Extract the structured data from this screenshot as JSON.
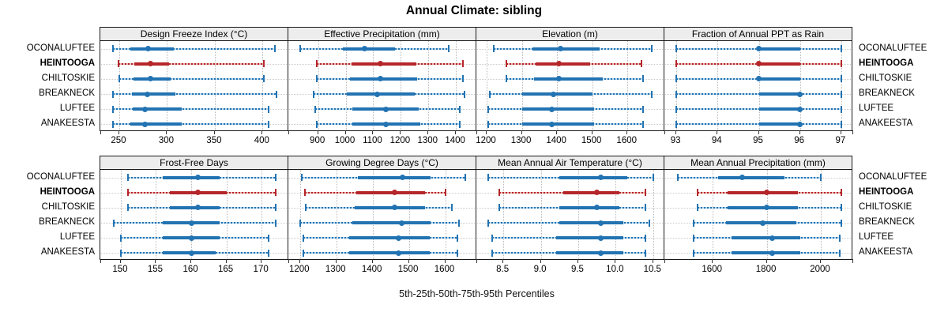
{
  "title": "Annual Climate: sibling",
  "caption": "5th-25th-50th-75th-95th Percentiles",
  "colors": {
    "blue": "#2273b2",
    "blue_stripe": "#b9d7ec",
    "red": "#b5262a",
    "red_stripe": "#eab4af",
    "strip_bg": "#ededed",
    "panel_border": "#1a1a1a",
    "gridline": "#b8b8b8",
    "row_guide": "#cbcbcb"
  },
  "chart_data": {
    "type": "percentile-dotplot",
    "title": "Annual Climate: sibling",
    "caption": "5th-25th-50th-75th-95th Percentiles",
    "sites": [
      "OCONALUFTEE",
      "HEINTOOGA",
      "CHILTOSKIE",
      "BREAKNECK",
      "LUFTEE",
      "ANAKEESTA"
    ],
    "highlighted_site": "HEINTOOGA",
    "percentile_order": [
      "p5",
      "p25",
      "p50",
      "p75",
      "p95"
    ],
    "legend": "grid of 2 rows x 4 panels; each row of marks = 5th/25th/50th/75th/95th percentiles; thin line p5-p95, thick bar p25-p75, dot p50",
    "panels": [
      {
        "name": "Design Freeze Index (°C)",
        "grid_row": 1,
        "xlim": [
          231,
          427
        ],
        "tick_values": [
          250,
          300,
          350,
          400
        ],
        "tick_labels": [
          "250",
          "300",
          "350",
          "400"
        ],
        "series": {
          "OCONALUFTEE": [
            243,
            262,
            280,
            307,
            413
          ],
          "HEINTOOGA": [
            249,
            266,
            283,
            302,
            401
          ],
          "CHILTOSKIE": [
            250,
            265,
            283,
            304,
            401
          ],
          "BREAKNECK": [
            243,
            263,
            279,
            309,
            415
          ],
          "LUFTEE": [
            243,
            264,
            277,
            315,
            406
          ],
          "ANAKEESTA": [
            243,
            262,
            277,
            315,
            406
          ]
        }
      },
      {
        "name": "Effective Precipitation (mm)",
        "grid_row": 1,
        "xlim": [
          795,
          1474
        ],
        "tick_values": [
          900,
          1000,
          1100,
          1200,
          1300,
          1400
        ],
        "tick_labels": [
          "900",
          "1000",
          "1100",
          "1200",
          "1300",
          "1400"
        ],
        "series": {
          "OCONALUFTEE": [
            835,
            990,
            1070,
            1180,
            1375
          ],
          "HEINTOOGA": [
            895,
            1020,
            1125,
            1255,
            1425
          ],
          "CHILTOSKIE": [
            895,
            1015,
            1125,
            1260,
            1425
          ],
          "BREAKNECK": [
            885,
            1005,
            1115,
            1250,
            1430
          ],
          "LUFTEE": [
            890,
            1025,
            1145,
            1265,
            1415
          ],
          "ANAKEESTA": [
            895,
            1025,
            1145,
            1270,
            1415
          ]
        }
      },
      {
        "name": "Elevation (m)",
        "grid_row": 1,
        "xlim": [
          1173,
          1705
        ],
        "tick_values": [
          1200,
          1300,
          1400,
          1500,
          1600
        ],
        "tick_labels": [
          "1200",
          "1300",
          "1400",
          "1500",
          "1600"
        ],
        "series": {
          "OCONALUFTEE": [
            1220,
            1330,
            1410,
            1520,
            1670
          ],
          "HEINTOOGA": [
            1255,
            1340,
            1405,
            1495,
            1640
          ],
          "CHILTOSKIE": [
            1255,
            1335,
            1405,
            1530,
            1645
          ],
          "BREAKNECK": [
            1210,
            1300,
            1390,
            1500,
            1670
          ],
          "LUFTEE": [
            1205,
            1300,
            1385,
            1505,
            1645
          ],
          "ANAKEESTA": [
            1205,
            1300,
            1385,
            1505,
            1645
          ]
        }
      },
      {
        "name": "Fraction of Annual PPT as Rain",
        "grid_row": 1,
        "xlim": [
          92.73,
          97.27
        ],
        "tick_values": [
          93,
          94,
          95,
          96,
          97
        ],
        "tick_labels": [
          "93",
          "94",
          "95",
          "96",
          "97"
        ],
        "series": {
          "OCONALUFTEE": [
            93,
            95,
            95,
            96,
            97
          ],
          "HEINTOOGA": [
            93,
            95,
            95,
            96,
            97
          ],
          "CHILTOSKIE": [
            93,
            95,
            95,
            96,
            97
          ],
          "BREAKNECK": [
            93,
            95,
            96,
            96,
            97
          ],
          "LUFTEE": [
            93,
            95,
            96,
            96,
            97
          ],
          "ANAKEESTA": [
            93,
            95,
            96,
            96,
            97
          ]
        }
      },
      {
        "name": "Frost-Free Days",
        "grid_row": 2,
        "xlim": [
          147.2,
          173.8
        ],
        "tick_values": [
          150,
          155,
          160,
          165,
          170
        ],
        "tick_labels": [
          "150",
          "155",
          "160",
          "165",
          "170"
        ],
        "series": {
          "OCONALUFTEE": [
            151,
            156,
            161,
            164,
            172
          ],
          "HEINTOOGA": [
            151,
            157,
            161,
            165,
            172
          ],
          "CHILTOSKIE": [
            151,
            157,
            161,
            164,
            172
          ],
          "BREAKNECK": [
            149,
            156,
            160,
            164,
            172
          ],
          "LUFTEE": [
            150,
            156,
            160,
            164,
            171
          ],
          "ANAKEESTA": [
            150,
            156,
            160,
            163.5,
            171
          ]
        }
      },
      {
        "name": "Growing Degree Days (°C)",
        "grid_row": 2,
        "xlim": [
          1170,
          1686
        ],
        "tick_values": [
          1200,
          1300,
          1400,
          1500,
          1600
        ],
        "tick_labels": [
          "1200",
          "1300",
          "1400",
          "1500",
          "1600"
        ],
        "series": {
          "OCONALUFTEE": [
            1205,
            1360,
            1483,
            1560,
            1655
          ],
          "HEINTOOGA": [
            1213,
            1355,
            1460,
            1545,
            1602
          ],
          "CHILTOSKIE": [
            1215,
            1350,
            1460,
            1545,
            1618
          ],
          "BREAKNECK": [
            1200,
            1345,
            1480,
            1560,
            1638
          ],
          "LUFTEE": [
            1210,
            1335,
            1472,
            1558,
            1634
          ],
          "ANAKEESTA": [
            1210,
            1335,
            1472,
            1558,
            1634
          ]
        }
      },
      {
        "name": "Mean Annual Air Temperature (°C)",
        "grid_row": 2,
        "xlim": [
          8.15,
          10.65
        ],
        "tick_values": [
          8.5,
          9.0,
          9.5,
          10.0,
          10.5
        ],
        "tick_labels": [
          "8.5",
          "9.0",
          "9.5",
          "10.0",
          "10.5"
        ],
        "series": {
          "OCONALUFTEE": [
            8.3,
            9.25,
            9.8,
            10.15,
            10.5
          ],
          "HEINTOOGA": [
            8.45,
            9.3,
            9.75,
            10.05,
            10.4
          ],
          "CHILTOSKIE": [
            8.45,
            9.25,
            9.75,
            10.05,
            10.4
          ],
          "BREAKNECK": [
            8.3,
            9.25,
            9.8,
            10.1,
            10.45
          ],
          "LUFTEE": [
            8.35,
            9.2,
            9.8,
            10.1,
            10.4
          ],
          "ANAKEESTA": [
            8.35,
            9.2,
            9.8,
            10.1,
            10.4
          ]
        }
      },
      {
        "name": "Mean Annual Precipitation (mm)",
        "grid_row": 2,
        "xlim": [
          1424,
          2117
        ],
        "tick_values": [
          1600,
          1800,
          2000
        ],
        "tick_labels": [
          "1600",
          "1800",
          "2000"
        ],
        "series": {
          "OCONALUFTEE": [
            1470,
            1620,
            1710,
            1865,
            2000
          ],
          "HEINTOOGA": [
            1545,
            1655,
            1800,
            1915,
            2075
          ],
          "CHILTOSKIE": [
            1545,
            1655,
            1800,
            1915,
            2075
          ],
          "BREAKNECK": [
            1530,
            1650,
            1785,
            1910,
            2075
          ],
          "LUFTEE": [
            1530,
            1670,
            1820,
            1925,
            2070
          ],
          "ANAKEESTA": [
            1530,
            1670,
            1820,
            1925,
            2070
          ]
        }
      }
    ]
  }
}
